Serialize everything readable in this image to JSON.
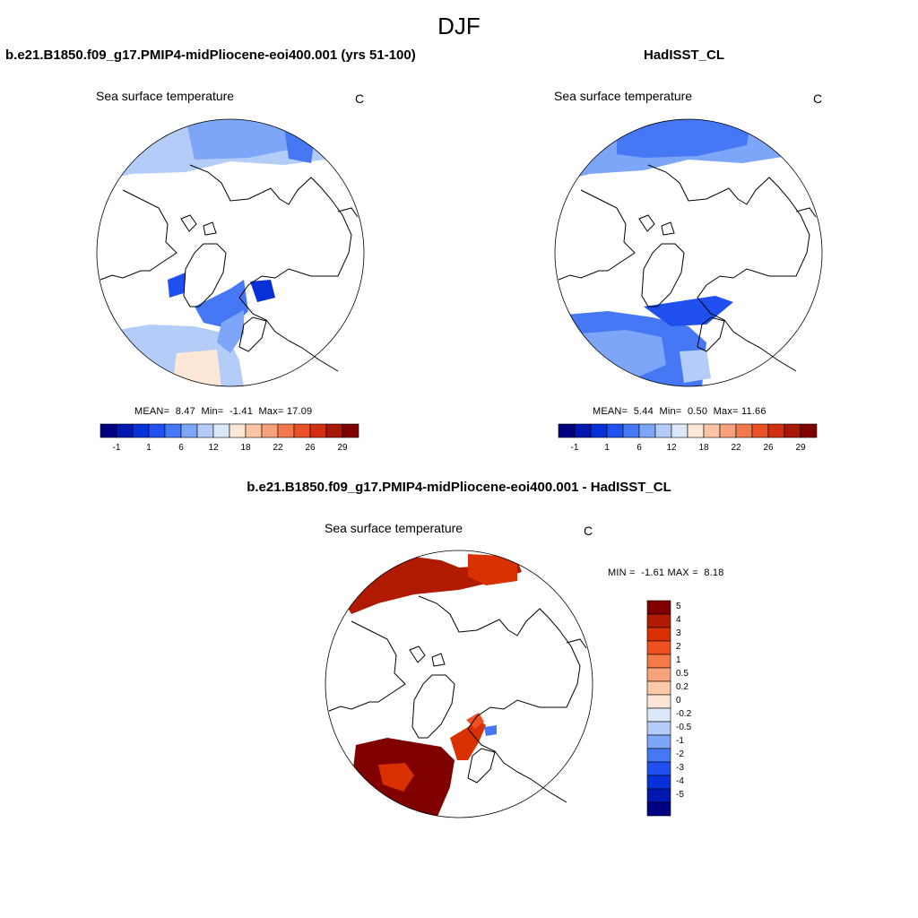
{
  "page_title": "DJF",
  "panels": {
    "left": {
      "title": "b.e21.B1850.f09_g17.PMIP4-midPliocene-eoi400.001 (yrs 51-100)",
      "variable": "Sea surface temperature",
      "units": "C",
      "mean_label": "MEAN=",
      "mean": "8.47",
      "min_label": "Min=",
      "min": "-1.41",
      "max_label": "Max=",
      "max": "17.09"
    },
    "right": {
      "title": "HadISST_CL",
      "variable": "Sea surface temperature",
      "units": "C",
      "mean_label": "MEAN=",
      "mean": "5.44",
      "min_label": "Min=",
      "min": "0.50",
      "max_label": "Max=",
      "max": "11.66"
    },
    "diff": {
      "title": "b.e21.B1850.f09_g17.PMIP4-midPliocene-eoi400.001 - HadISST_CL",
      "variable": "Sea surface temperature",
      "units": "C",
      "min_label": "MIN =",
      "min": "-1.61",
      "max_label": "MAX =",
      "max": "8.18"
    }
  },
  "colorbar_main": {
    "tick_labels": [
      "-1",
      "1",
      "6",
      "12",
      "18",
      "22",
      "26",
      "29"
    ],
    "colors": [
      "#000080",
      "#0018b0",
      "#0830d8",
      "#2050f0",
      "#4678f5",
      "#7ea6f8",
      "#b4cdf8",
      "#dce8f8",
      "#fde8d8",
      "#fbc4a4",
      "#f7a07c",
      "#f27850",
      "#ea5028",
      "#d03010",
      "#a81808",
      "#800000"
    ]
  },
  "colorbar_diff": {
    "tick_labels": [
      "5",
      "4",
      "3",
      "2",
      "1",
      "0.5",
      "0.2",
      "0",
      "-0.2",
      "-0.5",
      "-1",
      "-2",
      "-3",
      "-4",
      "-5"
    ],
    "colors": [
      "#800000",
      "#b01a00",
      "#d83000",
      "#f05020",
      "#f57a4a",
      "#f8a47a",
      "#fbc8a8",
      "#fde6d8",
      "#dce8f8",
      "#b4cdf8",
      "#7ea6f8",
      "#4678f5",
      "#2050f0",
      "#0830d8",
      "#0018b0",
      "#000080"
    ]
  },
  "colors": {
    "cold_blue": "#2050f0",
    "light_blue": "#7ea6f8",
    "pale_blue": "#b4cdf8",
    "pale_peach": "#fde8d8",
    "dark_red": "#b01a00",
    "red_orange": "#e04010"
  }
}
